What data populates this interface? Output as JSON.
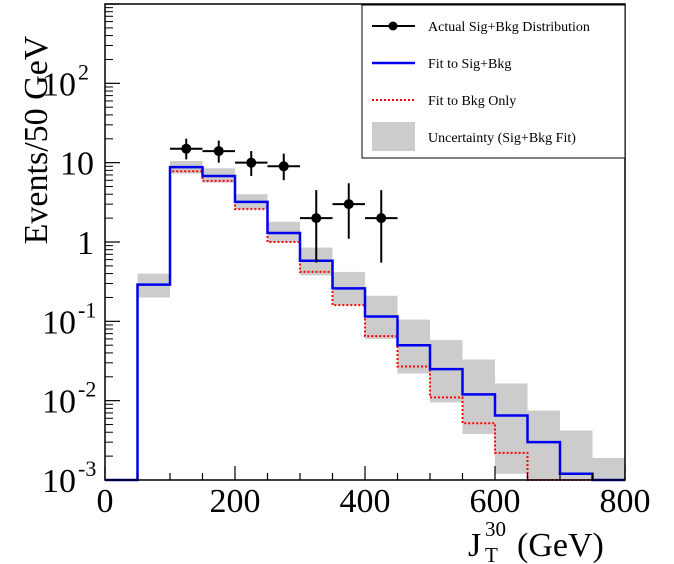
{
  "chart_data": {
    "type": "histogram",
    "title": "",
    "xlabel": "J",
    "xlabel_super": "30",
    "xlabel_sub": "T",
    "xlabel_units": "(GeV)",
    "ylabel": "Events/50 GeV",
    "xlim": [
      0,
      800
    ],
    "ylim": [
      0.001,
      1000
    ],
    "yscale": "log",
    "grid": false,
    "legend_position": "top-right",
    "x_ticks": [
      {
        "value": 0,
        "label": "0"
      },
      {
        "value": 200,
        "label": "200"
      },
      {
        "value": 400,
        "label": "400"
      },
      {
        "value": 600,
        "label": "600"
      },
      {
        "value": 800,
        "label": "800"
      }
    ],
    "y_ticks": [
      {
        "value": 0.001,
        "base": "10",
        "exp": "-3"
      },
      {
        "value": 0.01,
        "base": "10",
        "exp": "-2"
      },
      {
        "value": 0.1,
        "base": "10",
        "exp": "-1"
      },
      {
        "value": 1,
        "base": "1",
        "exp": ""
      },
      {
        "value": 10,
        "base": "10",
        "exp": ""
      },
      {
        "value": 100,
        "base": "10",
        "exp": "2"
      }
    ],
    "bin_edges": [
      0,
      50,
      100,
      150,
      200,
      250,
      300,
      350,
      400,
      450,
      500,
      550,
      600,
      650,
      700,
      750,
      800
    ],
    "series": [
      {
        "name": "Actual Sig+Bkg Distribution",
        "kind": "points",
        "color": "#000000",
        "points": [
          {
            "x": 125,
            "y": 15,
            "ylo": 11,
            "yhi": 20
          },
          {
            "x": 175,
            "y": 14,
            "ylo": 10,
            "yhi": 19
          },
          {
            "x": 225,
            "y": 10,
            "ylo": 6.8,
            "yhi": 14
          },
          {
            "x": 275,
            "y": 9,
            "ylo": 6,
            "yhi": 13
          },
          {
            "x": 325,
            "y": 2,
            "ylo": 0.55,
            "yhi": 4.5
          },
          {
            "x": 375,
            "y": 3,
            "ylo": 1.1,
            "yhi": 5.5
          },
          {
            "x": 425,
            "y": 2,
            "ylo": 0.55,
            "yhi": 4.5
          }
        ]
      },
      {
        "name": "Fit to Sig+Bkg",
        "kind": "step",
        "color": "#0000ee",
        "values": [
          0.001,
          0.29,
          8.8,
          6.8,
          3.2,
          1.3,
          0.58,
          0.26,
          0.115,
          0.05,
          0.025,
          0.012,
          0.0065,
          0.003,
          0.0012,
          0.001,
          0.001
        ]
      },
      {
        "name": "Fit to Bkg Only",
        "kind": "step-dotted",
        "color": "#ff0000",
        "values": [
          0.001,
          0.29,
          7.8,
          5.9,
          2.6,
          1.0,
          0.42,
          0.16,
          0.065,
          0.027,
          0.011,
          0.0052,
          0.0022,
          0.001,
          0.0009,
          0.0008,
          0.0008
        ]
      },
      {
        "name": "Uncertainty (Sig+Bkg Fit)",
        "kind": "band",
        "color": "#cccccc",
        "lo": [
          0.001,
          0.2,
          7.3,
          5.6,
          2.6,
          1.0,
          0.38,
          0.16,
          0.06,
          0.022,
          0.0095,
          0.0038,
          0.0012,
          0.0008,
          0.0008,
          0.0008,
          0.0008
        ],
        "hi": [
          0.001,
          0.4,
          10.5,
          8.5,
          4.0,
          1.8,
          0.85,
          0.42,
          0.21,
          0.105,
          0.058,
          0.033,
          0.0165,
          0.0075,
          0.0042,
          0.0019,
          0.0019
        ]
      }
    ]
  }
}
